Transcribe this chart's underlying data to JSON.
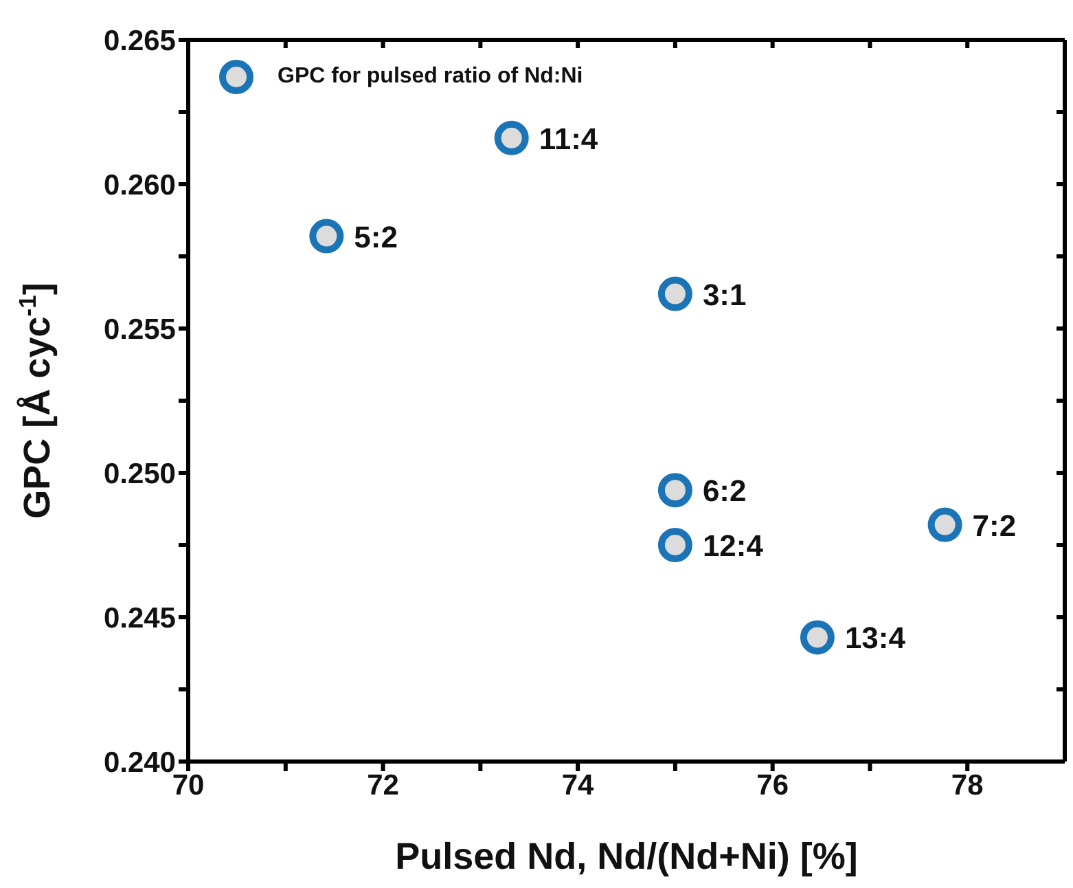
{
  "chart_data": {
    "type": "scatter",
    "xlabel": "Pulsed Nd, Nd/(Nd+Ni) [%]",
    "ylabel": "GPC [Å cyc$^{-1}$]",
    "series": [
      {
        "name": "GPC for pulsed ratio of Nd:Ni",
        "color": "#1a74b6",
        "x": [
          71.42,
          73.32,
          75,
          75,
          75,
          76.46,
          77.77
        ],
        "values": [
          0.2582,
          0.2616,
          0.2562,
          0.2494,
          0.2475,
          0.2443,
          0.2482
        ]
      }
    ],
    "annotations": [
      {
        "text": "5:2",
        "x": 71.42,
        "y": 0.2582
      },
      {
        "text": "11:4",
        "x": 73.32,
        "y": 0.2616
      },
      {
        "text": "3:1",
        "x": 75,
        "y": 0.2562
      },
      {
        "text": "6:2",
        "x": 75,
        "y": 0.2494
      },
      {
        "text": "12:4",
        "x": 75,
        "y": 0.2475
      },
      {
        "text": "13:4",
        "x": 76.46,
        "y": 0.2443
      },
      {
        "text": "7:2",
        "x": 77.77,
        "y": 0.2482
      }
    ],
    "xlim": [
      70,
      79
    ],
    "xticks": [
      70,
      {
        "value": 71,
        "label": null
      },
      72,
      {
        "value": 73,
        "label": null
      },
      74,
      {
        "value": 75,
        "label": null
      },
      76,
      {
        "value": 77,
        "label": null
      },
      78
    ],
    "ylim": [
      0.24,
      0.265
    ],
    "yticks": [
      {
        "value": 0.24,
        "label": "0.240"
      },
      {
        "value": 0.2425,
        "label": null
      },
      0.245,
      {
        "value": 0.2475,
        "label": null
      },
      {
        "value": 0.25,
        "label": "0.250"
      },
      {
        "value": 0.2525,
        "label": null
      },
      0.255,
      {
        "value": 0.2575,
        "label": null
      },
      {
        "value": 0.26,
        "label": "0.260"
      },
      {
        "value": 0.2625,
        "label": null
      },
      0.265
    ],
    "marker": "circle",
    "legend": "top left"
  }
}
